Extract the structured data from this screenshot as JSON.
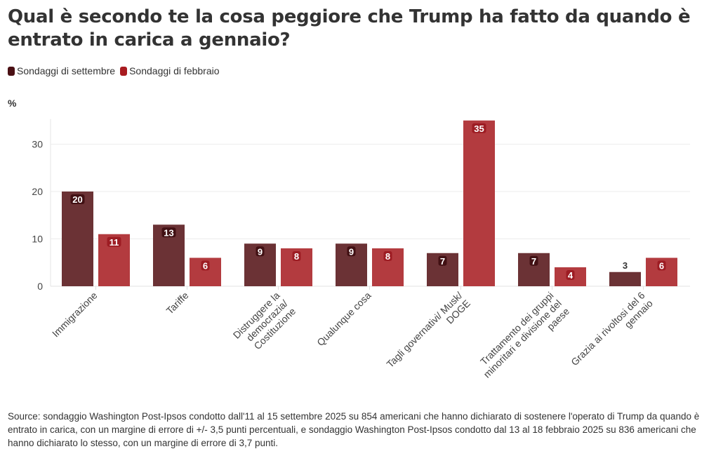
{
  "chart_data": {
    "type": "bar",
    "title": "Qual è secondo te la cosa peggiore che Trump ha fatto da quando è entrato in carica a gennaio?",
    "ylabel": "%",
    "xlabel": "",
    "ylim": [
      0,
      35
    ],
    "yticks": [
      0,
      10,
      20,
      30
    ],
    "grid": true,
    "legend_position": "top-left",
    "categories": [
      [
        "Immigrazione"
      ],
      [
        "Tariffe"
      ],
      [
        "Distruggere la",
        "democrazia/",
        "Costituzione"
      ],
      [
        "Qualunque cosa"
      ],
      [
        "Tagli governativi/ Musk/",
        "DOGE"
      ],
      [
        "Trattamento dei gruppi",
        "minoritari e divisione del",
        "paese"
      ],
      [
        "Grazia ai rivoltosi del 6",
        "gennaio"
      ]
    ],
    "series": [
      {
        "name": "Sondaggi di settembre",
        "color": "#6b3235",
        "legend_color": "#4a1014",
        "values": [
          20,
          13,
          9,
          9,
          7,
          7,
          3
        ]
      },
      {
        "name": "Sondaggi di febbraio",
        "color": "#b33b3f",
        "legend_color": "#a81b20",
        "values": [
          11,
          6,
          8,
          8,
          35,
          4,
          6
        ]
      }
    ]
  },
  "header": {
    "title": "Qual è secondo te la cosa peggiore che Trump ha fatto da quando è entrato in carica a gennaio?"
  },
  "legend": [
    {
      "label": "Sondaggi di settembre",
      "color": "#4a1014"
    },
    {
      "label": "Sondaggi di febbraio",
      "color": "#a81b20"
    }
  ],
  "unit_label": "%",
  "source": "Source: sondaggio Washington Post-Ipsos condotto dall'11 al 15 settembre 2025 su 854 americani che hanno dichiarato di sostenere l'operato di Trump da quando è entrato in carica, con un margine di errore di +/- 3,5 punti percentuali, e sondaggio Washington Post-Ipsos condotto dal 13 al 18 febbraio 2025 su 836 americani che hanno dichiarato lo stesso, con un margine di errore di 3,7 punti."
}
